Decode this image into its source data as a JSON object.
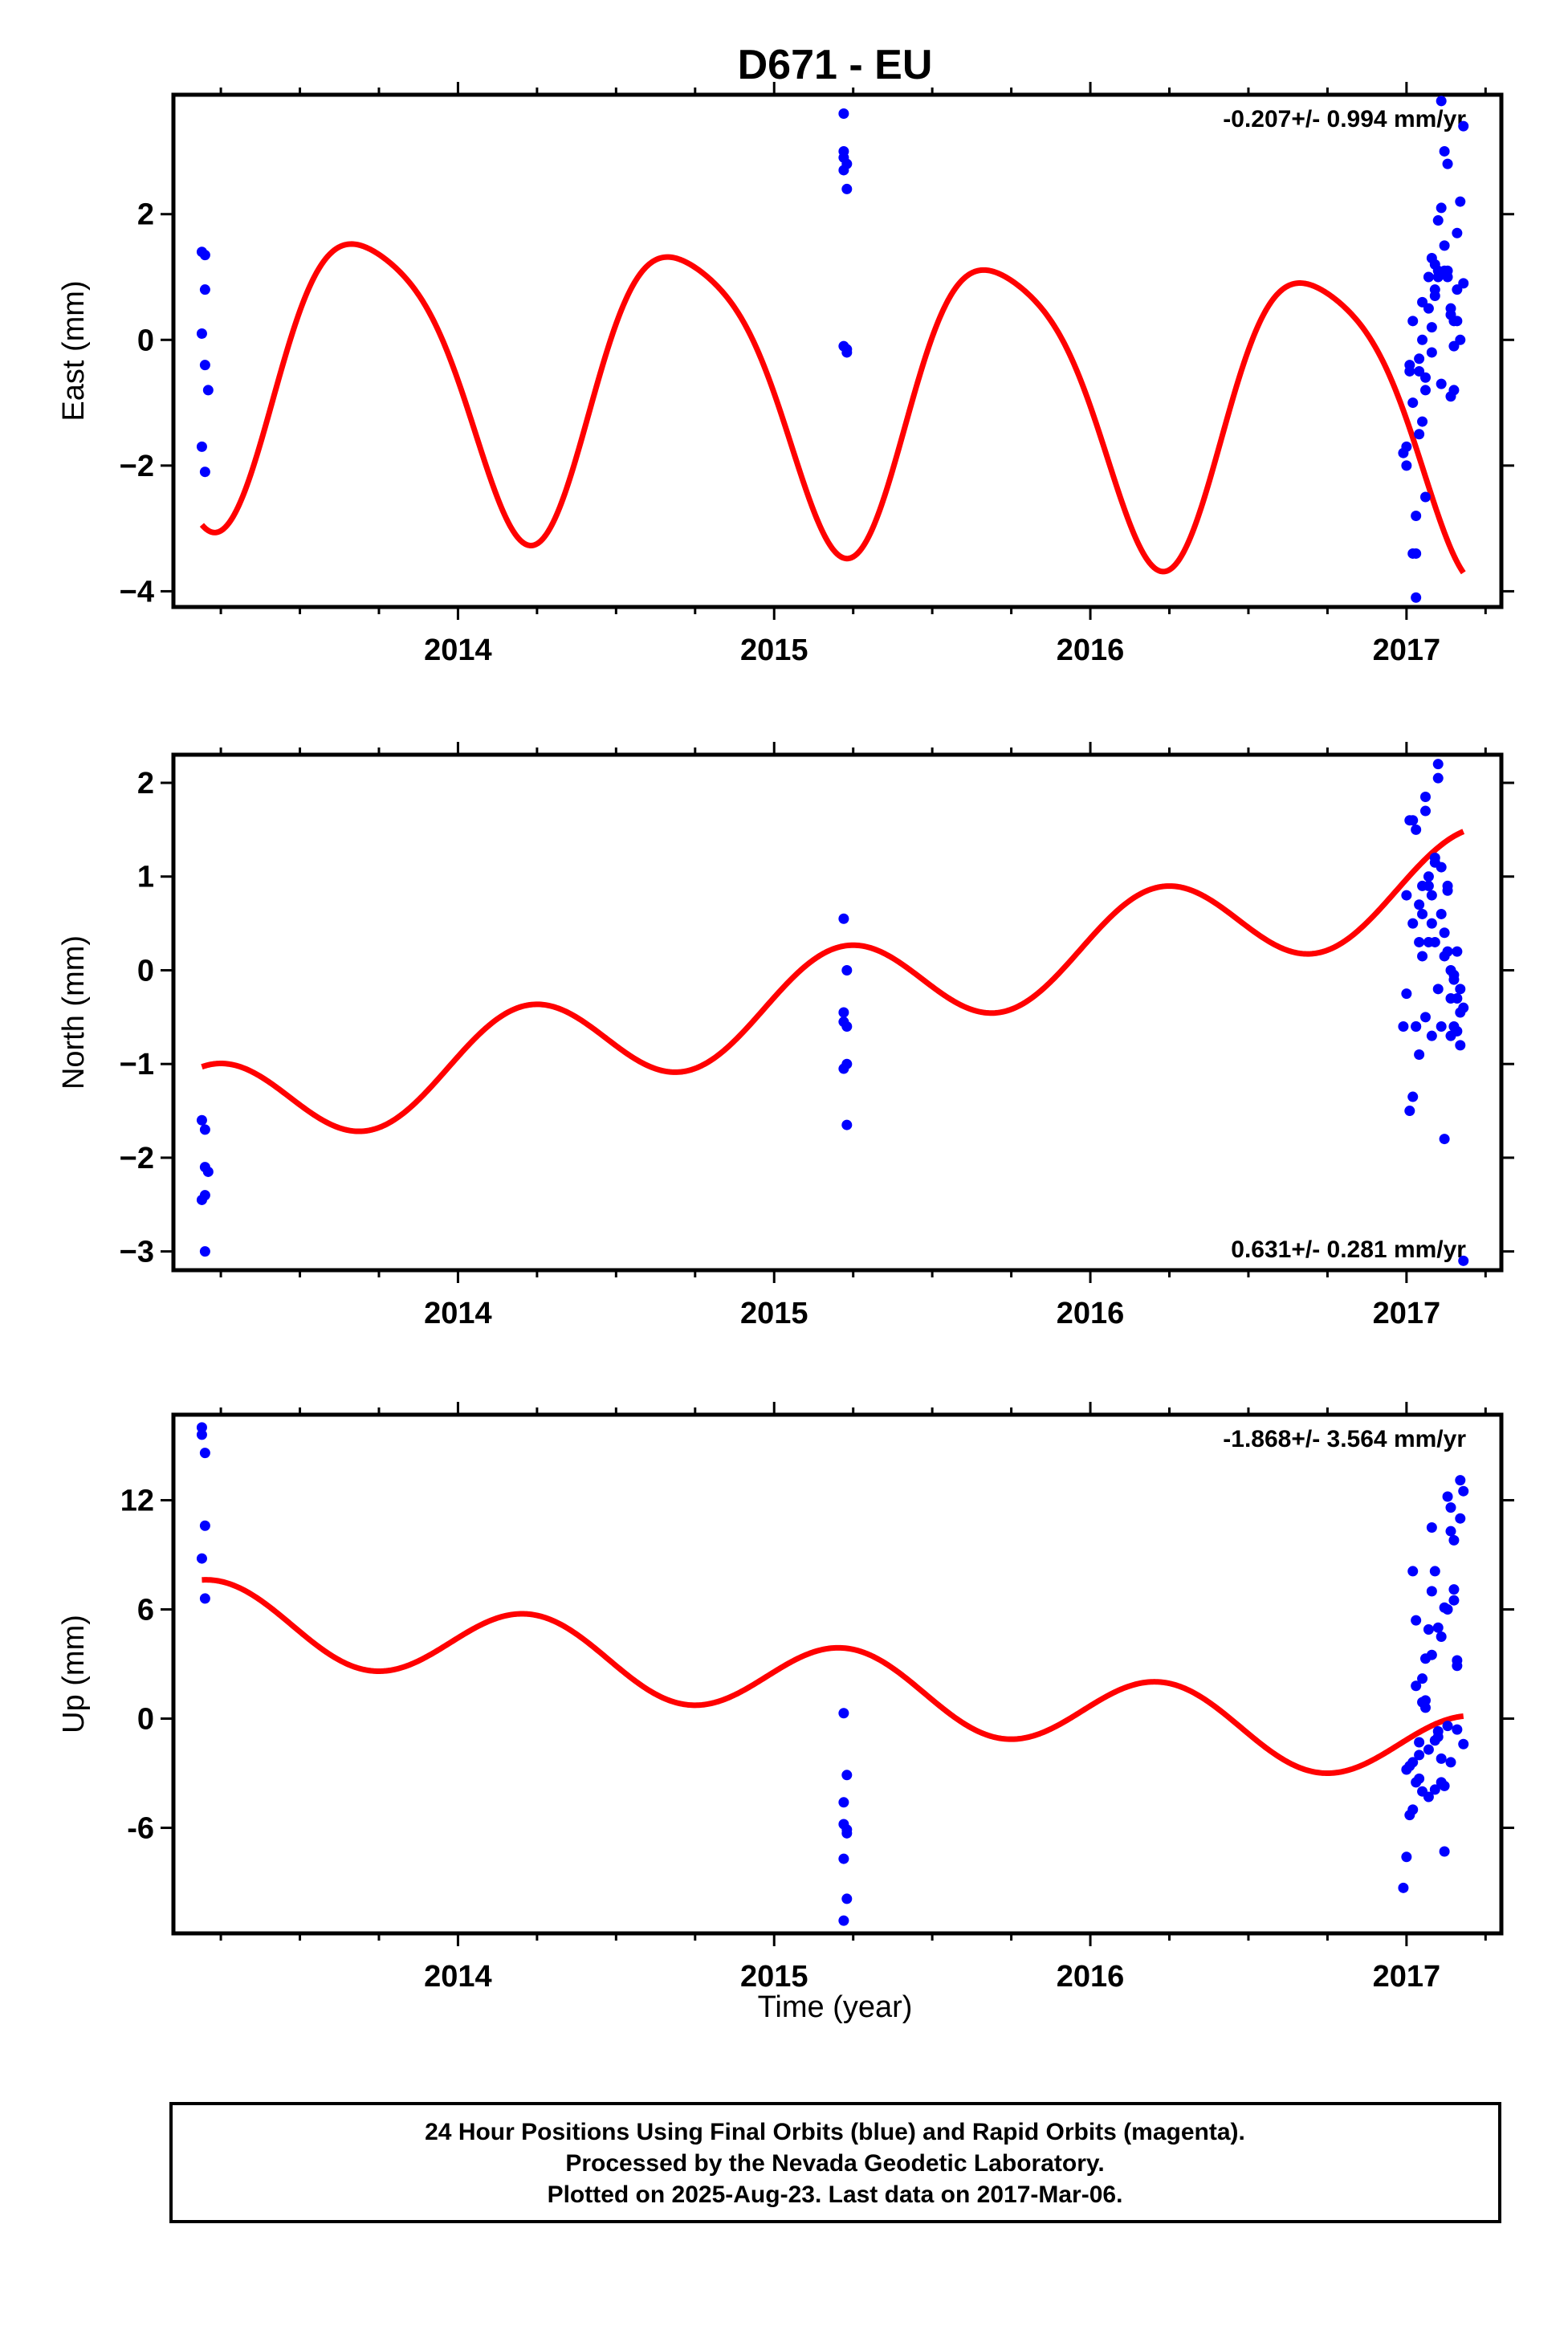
{
  "title": "D671 - EU",
  "xlabel": "Time (year)",
  "footer": {
    "line1": "24 Hour Positions Using Final Orbits (blue) and Rapid Orbits (magenta).",
    "line2": "Processed by the Nevada Geodetic Laboratory.",
    "line3": "Plotted on 2025-Aug-23. Last data on 2017-Mar-06."
  },
  "colors": {
    "data_points": "#0000ff",
    "model_curve": "#ff0000",
    "frame": "#000000"
  },
  "chart_data": [
    {
      "type": "scatter",
      "ylabel": "East (mm)",
      "rate_label": "-0.207+/- 0.994 mm/yr",
      "rate_position": "top-right",
      "xlim": [
        2013.1,
        2017.3
      ],
      "ylim": [
        -4.25,
        3.9
      ],
      "x_ticks": [
        2014,
        2015,
        2016,
        2017
      ],
      "x_tick_labels": [
        "2014",
        "2015",
        "2016",
        "2017"
      ],
      "y_ticks": [
        -4,
        -2,
        0,
        2
      ],
      "y_tick_labels": [
        "−4",
        "−2",
        "0",
        "2"
      ],
      "points": {
        "x": [
          2013.19,
          2013.2,
          2013.19,
          2013.2,
          2013.21,
          2013.19,
          2013.2,
          2013.2,
          2015.22,
          2015.22,
          2015.23,
          2015.22,
          2015.23,
          2015.22,
          2015.23,
          2015.23,
          2015.22,
          2016.99,
          2017.0,
          2017.01,
          2017.02,
          2017.02,
          2017.03,
          2017.03,
          2017.04,
          2017.04,
          2017.05,
          2017.05,
          2017.06,
          2017.06,
          2017.07,
          2017.07,
          2017.08,
          2017.08,
          2017.09,
          2017.09,
          2017.1,
          2017.1,
          2017.11,
          2017.11,
          2017.12,
          2017.12,
          2017.13,
          2017.13,
          2017.14,
          2017.14,
          2017.15,
          2017.15,
          2017.16,
          2017.16,
          2017.17,
          2017.17,
          2017.18,
          2017.18,
          2017.03,
          2017.05,
          2017.08,
          2017.1,
          2017.13,
          2017.15,
          2017.02,
          2017.06,
          2017.11,
          2017.14,
          2017.01,
          2017.16,
          2017.0,
          2017.04,
          2017.09,
          2017.12
        ],
        "y": [
          1.4,
          0.8,
          0.1,
          -0.4,
          -0.8,
          -1.7,
          -2.1,
          1.35,
          3.6,
          3.0,
          2.8,
          2.7,
          2.4,
          -0.1,
          -0.2,
          -0.15,
          2.9,
          -1.8,
          -2.0,
          -0.5,
          0.3,
          -3.4,
          -2.8,
          -4.1,
          -1.5,
          -0.3,
          0.0,
          -1.3,
          -2.5,
          -0.8,
          0.5,
          1.0,
          -0.2,
          0.2,
          1.2,
          0.8,
          1.0,
          1.9,
          2.1,
          3.8,
          3.0,
          1.5,
          1.1,
          1.0,
          0.5,
          -0.9,
          0.3,
          -0.1,
          1.7,
          0.8,
          2.2,
          0.0,
          3.4,
          0.9,
          -3.4,
          0.6,
          1.3,
          1.1,
          2.8,
          -0.8,
          -1.0,
          -0.6,
          -0.7,
          0.4,
          -0.4,
          0.3,
          -1.7,
          -0.5,
          0.7,
          1.1
        ]
      },
      "model": {
        "offset": -0.75,
        "trend": -0.207,
        "annual_sin": -2.25,
        "annual_cos": -0.5,
        "semi_sin": 0.0,
        "semi_cos": 0.4
      }
    },
    {
      "type": "scatter",
      "ylabel": "North (mm)",
      "rate_label": "0.631+/- 0.281 mm/yr",
      "rate_position": "bottom-right",
      "xlim": [
        2013.1,
        2017.3
      ],
      "ylim": [
        -3.2,
        2.3
      ],
      "x_ticks": [
        2014,
        2015,
        2016,
        2017
      ],
      "x_tick_labels": [
        "2014",
        "2015",
        "2016",
        "2017"
      ],
      "y_ticks": [
        -3,
        -2,
        -1,
        0,
        1,
        2
      ],
      "y_tick_labels": [
        "−3",
        "−2",
        "−1",
        "0",
        "1",
        "2"
      ],
      "points": {
        "x": [
          2013.19,
          2013.2,
          2013.2,
          2013.21,
          2013.19,
          2013.2,
          2013.2,
          2015.22,
          2015.23,
          2015.22,
          2015.23,
          2015.22,
          2015.23,
          2015.22,
          2015.23,
          2016.99,
          2017.0,
          2017.01,
          2017.02,
          2017.02,
          2017.03,
          2017.03,
          2017.04,
          2017.04,
          2017.05,
          2017.05,
          2017.06,
          2017.06,
          2017.07,
          2017.07,
          2017.08,
          2017.08,
          2017.09,
          2017.09,
          2017.1,
          2017.1,
          2017.11,
          2017.11,
          2017.12,
          2017.12,
          2017.13,
          2017.13,
          2017.14,
          2017.14,
          2017.15,
          2017.15,
          2017.16,
          2017.16,
          2017.17,
          2017.17,
          2017.18,
          2017.18,
          2017.0,
          2017.02,
          2017.04,
          2017.06,
          2017.08,
          2017.1,
          2017.12,
          2017.14,
          2017.16,
          2017.01,
          2017.05,
          2017.09,
          2017.13,
          2017.03,
          2017.07,
          2017.11,
          2017.15,
          2017.17
        ],
        "y": [
          -1.6,
          -1.7,
          -2.1,
          -2.15,
          -2.45,
          -3.0,
          -2.4,
          0.55,
          0.0,
          -0.45,
          -0.6,
          -0.55,
          -1.0,
          -1.05,
          -1.65,
          -0.6,
          0.8,
          1.6,
          1.6,
          0.5,
          1.5,
          -0.6,
          0.3,
          0.7,
          0.9,
          0.6,
          1.85,
          1.7,
          1.0,
          0.9,
          0.5,
          0.8,
          1.2,
          0.3,
          2.2,
          2.05,
          1.1,
          0.6,
          0.4,
          0.15,
          0.2,
          0.9,
          0.0,
          -0.3,
          -0.6,
          -0.1,
          -0.3,
          0.2,
          -0.8,
          -0.45,
          -3.1,
          -0.4,
          -0.25,
          -1.35,
          -0.9,
          -0.5,
          -0.7,
          -0.2,
          -1.8,
          -0.7,
          -0.65,
          -1.5,
          0.15,
          1.15,
          0.85,
          -0.6,
          0.3,
          -0.6,
          -0.05,
          -0.2
        ]
      },
      "model": {
        "offset": -0.39,
        "trend": 0.631,
        "annual_sin": 0.5,
        "annual_cos": 0.1,
        "semi_sin": 0.0,
        "semi_cos": 0.0
      }
    },
    {
      "type": "scatter",
      "ylabel": "Up (mm)",
      "rate_label": "-1.868+/- 3.564 mm/yr",
      "rate_position": "top-right",
      "xlim": [
        2013.1,
        2017.3
      ],
      "ylim": [
        -11.8,
        16.7
      ],
      "x_ticks": [
        2014,
        2015,
        2016,
        2017
      ],
      "x_tick_labels": [
        "2014",
        "2015",
        "2016",
        "2017"
      ],
      "y_ticks": [
        -6,
        0,
        6,
        12
      ],
      "y_tick_labels": [
        "-6",
        "0",
        "6",
        "12"
      ],
      "points": {
        "x": [
          2013.19,
          2013.2,
          2013.2,
          2013.19,
          2013.2,
          2013.19,
          2015.22,
          2015.23,
          2015.22,
          2015.22,
          2015.23,
          2015.22,
          2015.23,
          2015.22,
          2015.23,
          2016.99,
          2017.0,
          2017.01,
          2017.02,
          2017.02,
          2017.03,
          2017.03,
          2017.04,
          2017.04,
          2017.05,
          2017.05,
          2017.06,
          2017.06,
          2017.07,
          2017.07,
          2017.08,
          2017.08,
          2017.09,
          2017.09,
          2017.1,
          2017.1,
          2017.11,
          2017.11,
          2017.12,
          2017.12,
          2017.13,
          2017.13,
          2017.14,
          2017.14,
          2017.15,
          2017.15,
          2017.16,
          2017.16,
          2017.17,
          2017.17,
          2017.18,
          2017.18,
          2017.0,
          2017.02,
          2017.04,
          2017.06,
          2017.08,
          2017.1,
          2017.12,
          2017.14,
          2017.16,
          2017.01,
          2017.05,
          2017.09,
          2017.13,
          2017.03,
          2017.07,
          2017.11,
          2017.15
        ],
        "y": [
          15.6,
          14.6,
          10.6,
          8.8,
          6.6,
          16.0,
          0.3,
          -3.1,
          -4.6,
          -5.8,
          -6.3,
          -7.7,
          -9.9,
          -11.1,
          -6.1,
          -9.3,
          -7.6,
          -5.3,
          8.1,
          -2.4,
          5.4,
          1.8,
          -1.3,
          -3.3,
          2.2,
          -4.0,
          0.6,
          3.3,
          4.9,
          -1.7,
          10.5,
          7.0,
          -3.9,
          8.1,
          5.0,
          -1.0,
          4.5,
          -3.5,
          -7.3,
          6.1,
          6.0,
          12.2,
          11.6,
          10.3,
          9.8,
          7.1,
          2.9,
          -0.6,
          13.1,
          11.0,
          12.5,
          -1.4,
          -2.8,
          -5.0,
          -2.0,
          1.0,
          3.5,
          -0.7,
          -3.7,
          -2.4,
          3.2,
          -2.6,
          0.9,
          -1.2,
          -0.4,
          -3.5,
          -4.3,
          -2.2,
          6.5
        ]
      },
      "model": {
        "offset": 2.27,
        "trend": -1.868,
        "annual_sin": 2.0,
        "annual_cos": 0.3,
        "semi_sin": 0.0,
        "semi_cos": 0.0
      }
    }
  ]
}
